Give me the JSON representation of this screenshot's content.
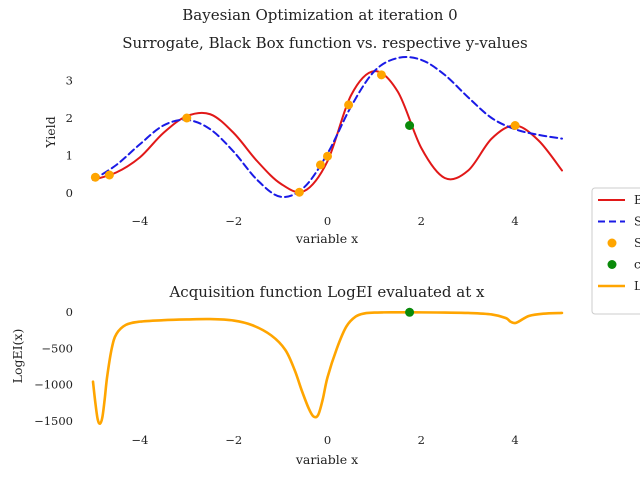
{
  "figure": {
    "suptitle": "Bayesian Optimization at iteration 0"
  },
  "chart_data": [
    {
      "type": "line",
      "title": "Surrogate, Black Box function vs. respective y-values",
      "xlabel": "variable x",
      "ylabel": "Yield",
      "xlim": [
        -5,
        5
      ],
      "ylim": [
        -0.4,
        3.6
      ],
      "xticks": [
        -4,
        -2,
        0,
        2,
        4
      ],
      "xtick_labels": [
        "−4",
        "−2",
        "0",
        "2",
        "4"
      ],
      "yticks": [
        0,
        1,
        2,
        3
      ],
      "ytick_labels": [
        "0",
        "1",
        "2",
        "3"
      ],
      "grid": false,
      "series": [
        {
          "name": "Black Box",
          "color": "#e11818",
          "dash": "solid",
          "x": [
            -5.0,
            -4.5,
            -4.0,
            -3.5,
            -3.0,
            -2.5,
            -2.0,
            -1.5,
            -1.0,
            -0.5,
            0.0,
            0.5,
            1.0,
            1.5,
            2.0,
            2.5,
            3.0,
            3.5,
            4.0,
            4.5,
            5.0
          ],
          "y": [
            0.35,
            0.55,
            0.95,
            1.6,
            2.05,
            2.1,
            1.6,
            0.85,
            0.25,
            0.05,
            0.85,
            2.6,
            3.25,
            2.7,
            1.2,
            0.4,
            0.6,
            1.45,
            1.8,
            1.4,
            0.6
          ]
        },
        {
          "name": "Surrogate",
          "color": "#1a1ae6",
          "dash": "dashed",
          "x": [
            -5.0,
            -4.5,
            -4.0,
            -3.5,
            -3.0,
            -2.5,
            -2.0,
            -1.5,
            -1.0,
            -0.5,
            0.0,
            0.5,
            1.0,
            1.5,
            2.0,
            2.5,
            3.0,
            3.5,
            4.0,
            4.5,
            5.0
          ],
          "y": [
            0.35,
            0.75,
            1.3,
            1.8,
            1.95,
            1.7,
            1.1,
            0.35,
            -0.1,
            0.15,
            1.05,
            2.3,
            3.25,
            3.6,
            3.55,
            3.15,
            2.55,
            2.0,
            1.7,
            1.55,
            1.45
          ]
        }
      ],
      "points": [
        {
          "name": "Samples",
          "color": "#ffa500",
          "x": [
            -4.95,
            -4.65,
            -3.0,
            -0.6,
            -0.15,
            0.0,
            0.45,
            1.15,
            4.0
          ],
          "y": [
            0.42,
            0.48,
            2.0,
            0.02,
            0.75,
            0.98,
            2.35,
            3.15,
            1.8
          ]
        },
        {
          "name": "current sample",
          "color": "#0a8a0a",
          "x": [
            1.75
          ],
          "y": [
            1.8
          ]
        }
      ]
    },
    {
      "type": "line",
      "title": "Acquisition function LogEI evaluated at x",
      "xlabel": "variable x",
      "ylabel": "LogEI(x)",
      "xlim": [
        -5,
        5
      ],
      "ylim": [
        -1600,
        100
      ],
      "xticks": [
        -4,
        -2,
        0,
        2,
        4
      ],
      "xtick_labels": [
        "−4",
        "−2",
        "0",
        "2",
        "4"
      ],
      "yticks": [
        0,
        -500,
        -1000,
        -1500
      ],
      "ytick_labels": [
        "0",
        "−500",
        "−1000",
        "−1500"
      ],
      "grid": false,
      "series": [
        {
          "name": "LogEI",
          "color": "#ffa500",
          "dash": "solid",
          "x": [
            -5.0,
            -4.95,
            -4.9,
            -4.85,
            -4.8,
            -4.75,
            -4.7,
            -4.6,
            -4.5,
            -4.3,
            -4.0,
            -3.5,
            -3.0,
            -2.5,
            -2.0,
            -1.6,
            -1.2,
            -0.9,
            -0.7,
            -0.55,
            -0.4,
            -0.3,
            -0.2,
            -0.1,
            0.0,
            0.2,
            0.4,
            0.6,
            0.8,
            1.0,
            1.2,
            1.5,
            1.75,
            2.0,
            2.5,
            3.0,
            3.5,
            3.8,
            3.9,
            4.0,
            4.1,
            4.3,
            4.6,
            5.0
          ],
          "y": [
            -960,
            -1250,
            -1480,
            -1540,
            -1450,
            -1200,
            -900,
            -500,
            -300,
            -175,
            -130,
            -110,
            -100,
            -95,
            -115,
            -180,
            -320,
            -520,
            -800,
            -1080,
            -1330,
            -1440,
            -1420,
            -1200,
            -900,
            -500,
            -200,
            -60,
            -15,
            -5,
            -2,
            -1,
            -1,
            -2,
            -5,
            -10,
            -30,
            -80,
            -130,
            -150,
            -120,
            -50,
            -20,
            -10
          ]
        }
      ],
      "points": [
        {
          "name": "current sample",
          "color": "#0a8a0a",
          "x": [
            1.75
          ],
          "y": [
            -1
          ]
        }
      ]
    }
  ],
  "legend": {
    "placement": "right, outside",
    "visible_text": [
      "B",
      "S",
      "S",
      "c",
      "L"
    ],
    "entries": [
      {
        "marker": "line",
        "color": "#e11818"
      },
      {
        "marker": "dashed",
        "color": "#1a1ae6"
      },
      {
        "marker": "dot",
        "color": "#ffa500"
      },
      {
        "marker": "dot",
        "color": "#0a8a0a"
      },
      {
        "marker": "thick",
        "color": "#ffa500"
      }
    ]
  }
}
